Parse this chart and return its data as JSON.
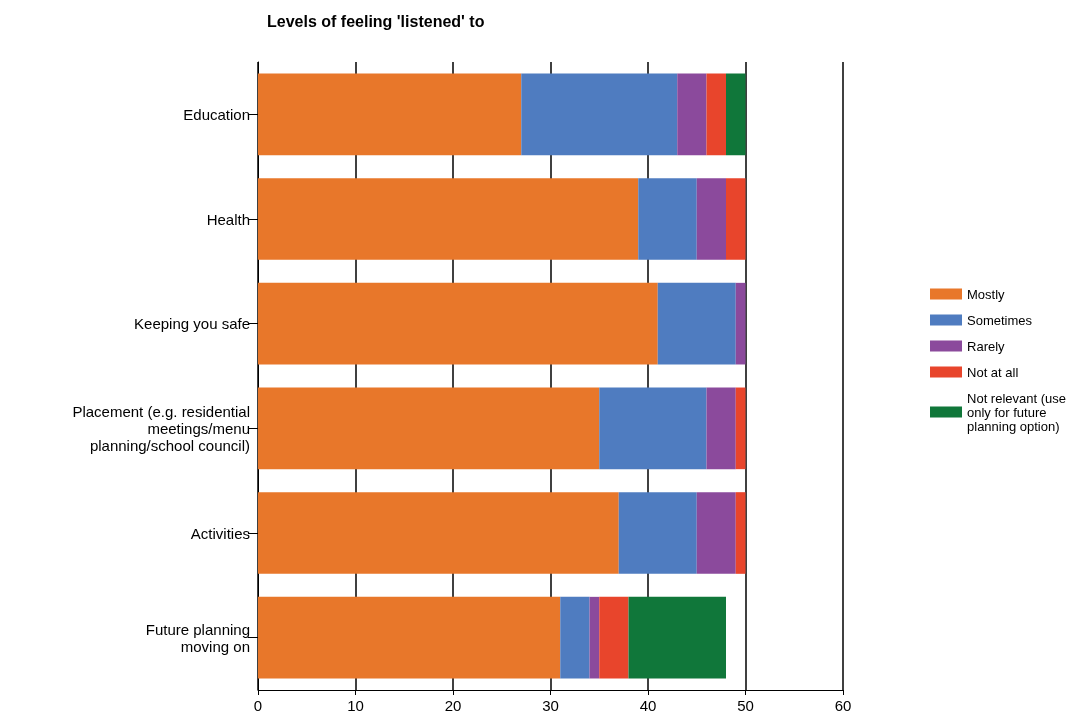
{
  "chart_data": {
    "type": "bar",
    "orientation": "horizontal",
    "stacked": true,
    "title": "Levels of feeling 'listened' to",
    "categories": [
      "Education",
      "Health",
      "Keeping you safe",
      "Placement (e.g. residential\nmeetings/menu\nplanning/school council)",
      "Activities",
      "Future planning\nmoving on"
    ],
    "series": [
      {
        "name": "Mostly",
        "color": "#e8772a",
        "values": [
          27,
          39,
          41,
          35,
          37,
          31
        ]
      },
      {
        "name": "Sometimes",
        "color": "#4f7cc0",
        "values": [
          16,
          6,
          8,
          11,
          8,
          3
        ]
      },
      {
        "name": "Rarely",
        "color": "#8b4a9c",
        "values": [
          3,
          3,
          1,
          3,
          4,
          1
        ]
      },
      {
        "name": "Not at all",
        "color": "#e8452c",
        "values": [
          2,
          2,
          null,
          1,
          1,
          3
        ]
      },
      {
        "name": "Not relevant (use\nonly for future\nplanning option)",
        "color": "#10773a",
        "values": [
          2,
          null,
          null,
          null,
          null,
          10
        ]
      }
    ],
    "xlim": [
      0,
      60
    ],
    "xticks": [
      0,
      10,
      20,
      30,
      40,
      50,
      60
    ],
    "grid": "x",
    "legend": "right"
  }
}
